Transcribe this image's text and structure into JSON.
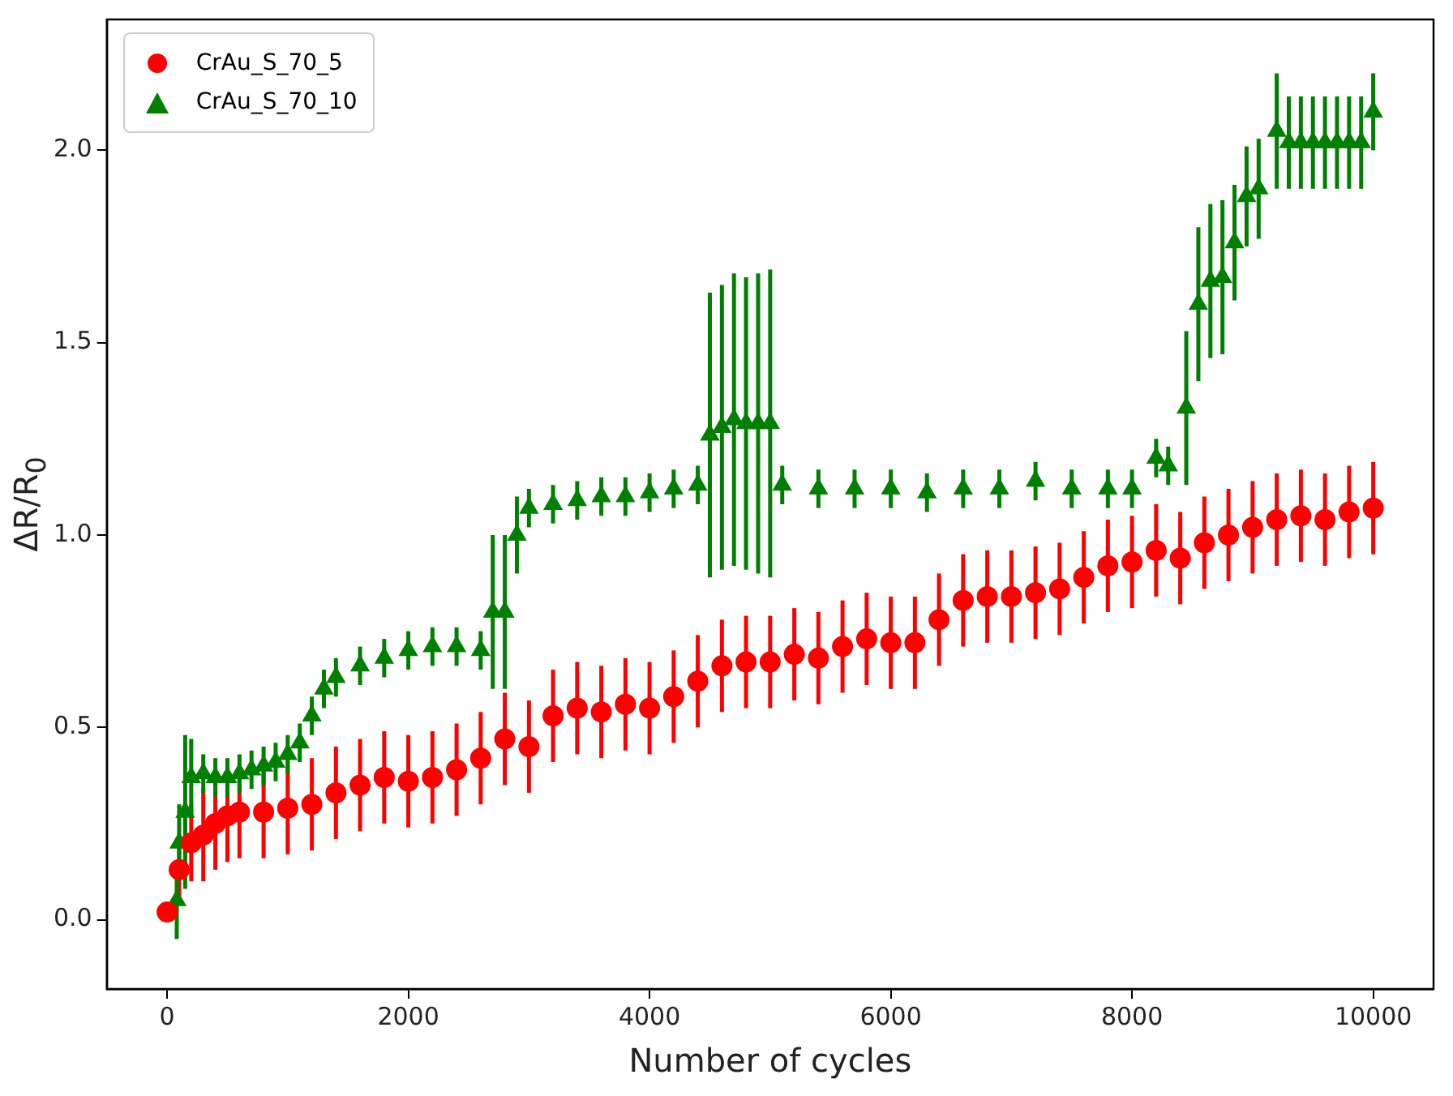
{
  "chart_data": {
    "type": "scatter",
    "xlabel": "Number of cycles",
    "ylabel": "ΔR/R$_{0}$",
    "xlim": [
      -500,
      10500
    ],
    "ylim": [
      -0.18,
      2.34
    ],
    "xticks": [
      0,
      2000,
      4000,
      6000,
      8000,
      10000
    ],
    "yticks": [
      {
        "value": 0,
        "label": "0.0"
      },
      {
        "value": 0.5,
        "label": "0.5"
      },
      {
        "value": 1,
        "label": "1.0"
      },
      {
        "value": 1.5,
        "label": "1.5"
      },
      {
        "value": 2,
        "label": "2.0"
      }
    ],
    "legend": "top left",
    "grid": false,
    "series": [
      {
        "name": "CrAu_S_70_5",
        "color": "#ff0000",
        "marker": "circle",
        "x": [
          0,
          100,
          200,
          300,
          400,
          500,
          600,
          800,
          1000,
          1200,
          1400,
          1600,
          1800,
          2000,
          2200,
          2400,
          2600,
          2800,
          3000,
          3200,
          3400,
          3600,
          3800,
          4000,
          4200,
          4400,
          4600,
          4800,
          5000,
          5200,
          5400,
          5600,
          5800,
          6000,
          6200,
          6400,
          6600,
          6800,
          7000,
          7200,
          7400,
          7600,
          7800,
          8000,
          8200,
          8400,
          8600,
          8800,
          9000,
          9200,
          9400,
          9600,
          9800,
          10000
        ],
        "values": [
          0.02,
          0.13,
          0.2,
          0.22,
          0.25,
          0.27,
          0.28,
          0.28,
          0.29,
          0.3,
          0.33,
          0.35,
          0.37,
          0.36,
          0.37,
          0.39,
          0.42,
          0.47,
          0.45,
          0.53,
          0.55,
          0.54,
          0.56,
          0.55,
          0.58,
          0.62,
          0.66,
          0.67,
          0.67,
          0.69,
          0.68,
          0.71,
          0.73,
          0.72,
          0.72,
          0.78,
          0.83,
          0.84,
          0.84,
          0.85,
          0.86,
          0.89,
          0.92,
          0.93,
          0.96,
          0.94,
          0.98,
          1.0,
          1.02,
          1.04,
          1.05,
          1.04,
          1.06,
          1.07
        ],
        "errors": [
          null,
          0.08,
          0.1,
          0.12,
          0.12,
          0.12,
          0.12,
          0.12,
          0.12,
          0.12,
          0.12,
          0.12,
          0.12,
          0.12,
          0.12,
          0.12,
          0.12,
          0.12,
          0.12,
          0.12,
          0.12,
          0.12,
          0.12,
          0.12,
          0.12,
          0.12,
          0.12,
          0.12,
          0.12,
          0.12,
          0.12,
          0.12,
          0.12,
          0.12,
          0.12,
          0.12,
          0.12,
          0.12,
          0.12,
          0.12,
          0.12,
          0.12,
          0.12,
          0.12,
          0.12,
          0.12,
          0.12,
          0.12,
          0.12,
          0.12,
          0.12,
          0.12,
          0.12,
          0.12
        ]
      },
      {
        "name": "CrAu_S_70_10",
        "color": "#008000",
        "marker": "triangle",
        "x": [
          80,
          100,
          150,
          200,
          300,
          400,
          500,
          600,
          700,
          800,
          900,
          1000,
          1100,
          1200,
          1300,
          1400,
          1600,
          1800,
          2000,
          2200,
          2400,
          2600,
          2700,
          2800,
          2900,
          3000,
          3200,
          3400,
          3600,
          3800,
          4000,
          4200,
          4400,
          4500,
          4600,
          4700,
          4800,
          4900,
          5000,
          5100,
          5400,
          5700,
          6000,
          6300,
          6600,
          6900,
          7200,
          7500,
          7800,
          8000,
          8200,
          8300,
          8450,
          8550,
          8650,
          8750,
          8850,
          8950,
          9050,
          9200,
          9300,
          9400,
          9500,
          9600,
          9700,
          9800,
          9900,
          10000
        ],
        "values": [
          0.05,
          0.2,
          0.28,
          0.37,
          0.38,
          0.37,
          0.37,
          0.38,
          0.39,
          0.4,
          0.41,
          0.43,
          0.46,
          0.53,
          0.6,
          0.63,
          0.66,
          0.68,
          0.7,
          0.71,
          0.71,
          0.7,
          0.8,
          0.8,
          1.0,
          1.07,
          1.08,
          1.09,
          1.1,
          1.1,
          1.11,
          1.12,
          1.13,
          1.26,
          1.28,
          1.3,
          1.29,
          1.29,
          1.29,
          1.13,
          1.12,
          1.12,
          1.12,
          1.11,
          1.12,
          1.12,
          1.14,
          1.12,
          1.12,
          1.12,
          1.2,
          1.18,
          1.33,
          1.6,
          1.66,
          1.67,
          1.76,
          1.88,
          1.9,
          2.05,
          2.02,
          2.02,
          2.02,
          2.02,
          2.02,
          2.02,
          2.02,
          2.1
        ],
        "errors": [
          0.1,
          0.1,
          0.2,
          0.1,
          0.05,
          0.05,
          0.05,
          0.05,
          0.05,
          0.05,
          0.05,
          0.05,
          0.05,
          0.05,
          0.05,
          0.05,
          0.05,
          0.05,
          0.05,
          0.05,
          0.05,
          0.05,
          0.2,
          0.2,
          0.1,
          0.05,
          0.05,
          0.05,
          0.05,
          0.05,
          0.05,
          0.05,
          0.05,
          0.37,
          0.37,
          0.38,
          0.38,
          0.39,
          0.4,
          0.05,
          0.05,
          0.05,
          0.05,
          0.05,
          0.05,
          0.05,
          0.05,
          0.05,
          0.05,
          0.05,
          0.05,
          0.05,
          0.2,
          0.2,
          0.2,
          0.2,
          0.15,
          0.13,
          0.13,
          0.15,
          0.12,
          0.12,
          0.12,
          0.12,
          0.12,
          0.12,
          0.12,
          0.1
        ]
      }
    ]
  }
}
